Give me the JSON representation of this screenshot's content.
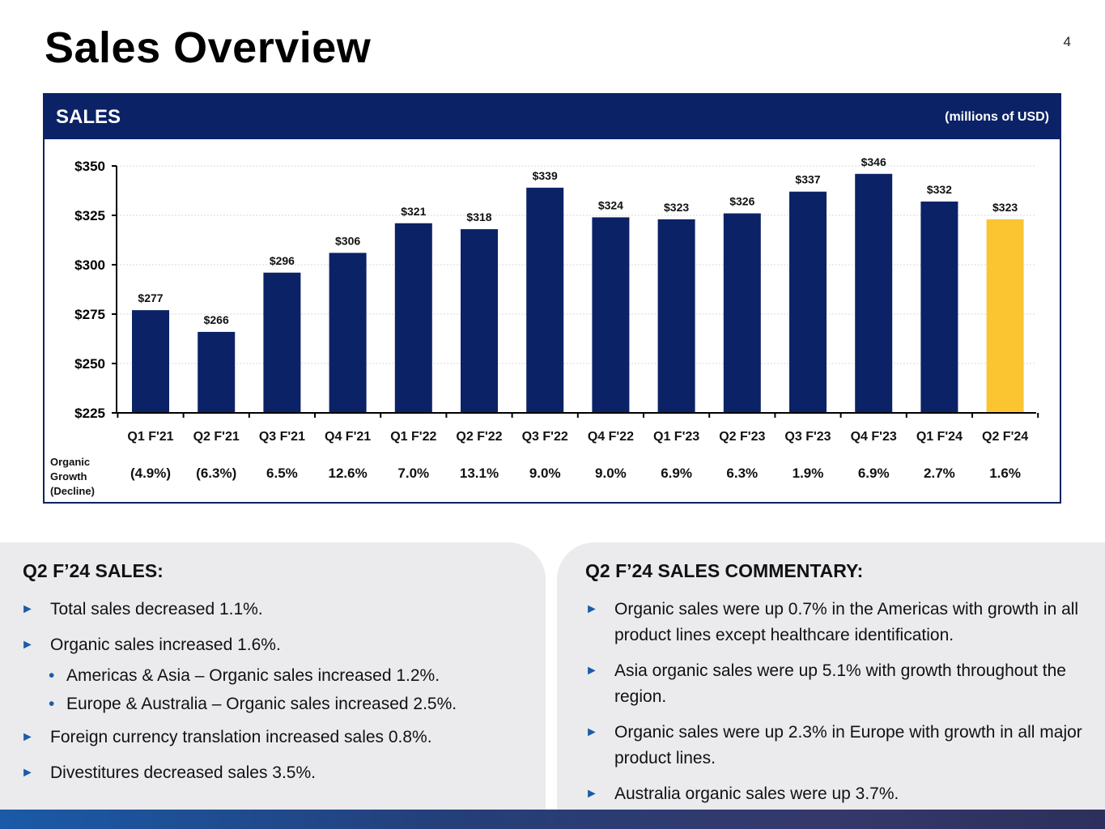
{
  "page": {
    "title": "Sales Overview",
    "number": "4"
  },
  "panel": {
    "title": "SALES",
    "units": "(millions of USD)"
  },
  "colors": {
    "navy": "#0b2266",
    "highlight": "#fbc531",
    "bullet": "#1a5da8"
  },
  "chart_data": {
    "type": "bar",
    "title": "SALES",
    "ylabel": "(millions of USD)",
    "ylim": [
      225,
      350
    ],
    "yticks": [
      225,
      250,
      275,
      300,
      325,
      350
    ],
    "ytick_labels": [
      "$225",
      "$250",
      "$275",
      "$300",
      "$325",
      "$350"
    ],
    "categories": [
      "Q1 F'21",
      "Q2 F'21",
      "Q3 F'21",
      "Q4 F'21",
      "Q1 F'22",
      "Q2 F'22",
      "Q3 F'22",
      "Q4 F'22",
      "Q1 F'23",
      "Q2 F'23",
      "Q3 F'23",
      "Q4 F'23",
      "Q1 F'24",
      "Q2 F'24"
    ],
    "values": [
      277,
      266,
      296,
      306,
      321,
      318,
      339,
      324,
      323,
      326,
      337,
      346,
      332,
      323
    ],
    "value_labels": [
      "$277",
      "$266",
      "$296",
      "$306",
      "$321",
      "$318",
      "$339",
      "$324",
      "$323",
      "$326",
      "$337",
      "$346",
      "$332",
      "$323"
    ],
    "highlight_index": 13,
    "grid": true,
    "organic_growth": {
      "label_lines": [
        "Organic",
        "Growth",
        "(Decline)"
      ],
      "values": [
        "(4.9%)",
        "(6.3%)",
        "6.5%",
        "12.6%",
        "7.0%",
        "13.1%",
        "9.0%",
        "9.0%",
        "6.9%",
        "6.3%",
        "1.9%",
        "6.9%",
        "2.7%",
        "1.6%"
      ]
    }
  },
  "left_card": {
    "heading": "Q2 F’24 SALES:",
    "items": [
      {
        "text": "Total sales decreased 1.1%."
      },
      {
        "text": "Organic sales increased 1.6%."
      },
      {
        "text": "Americas & Asia – Organic sales increased 1.2%."
      },
      {
        "text": "Europe & Australia – Organic sales increased 2.5%."
      },
      {
        "text": "Foreign currency translation increased sales 0.8%."
      },
      {
        "text": "Divestitures decreased sales 3.5%."
      }
    ]
  },
  "right_card": {
    "heading": "Q2 F’24 SALES COMMENTARY:",
    "items": [
      {
        "text": "Organic sales were up 0.7% in the Americas with growth in all product lines except healthcare identification."
      },
      {
        "text": "Asia organic sales were up 5.1% with growth throughout the region."
      },
      {
        "text": "Organic sales were up 2.3% in Europe with growth in all major product lines."
      },
      {
        "text": "Australia organic sales were up 3.7%."
      }
    ]
  }
}
